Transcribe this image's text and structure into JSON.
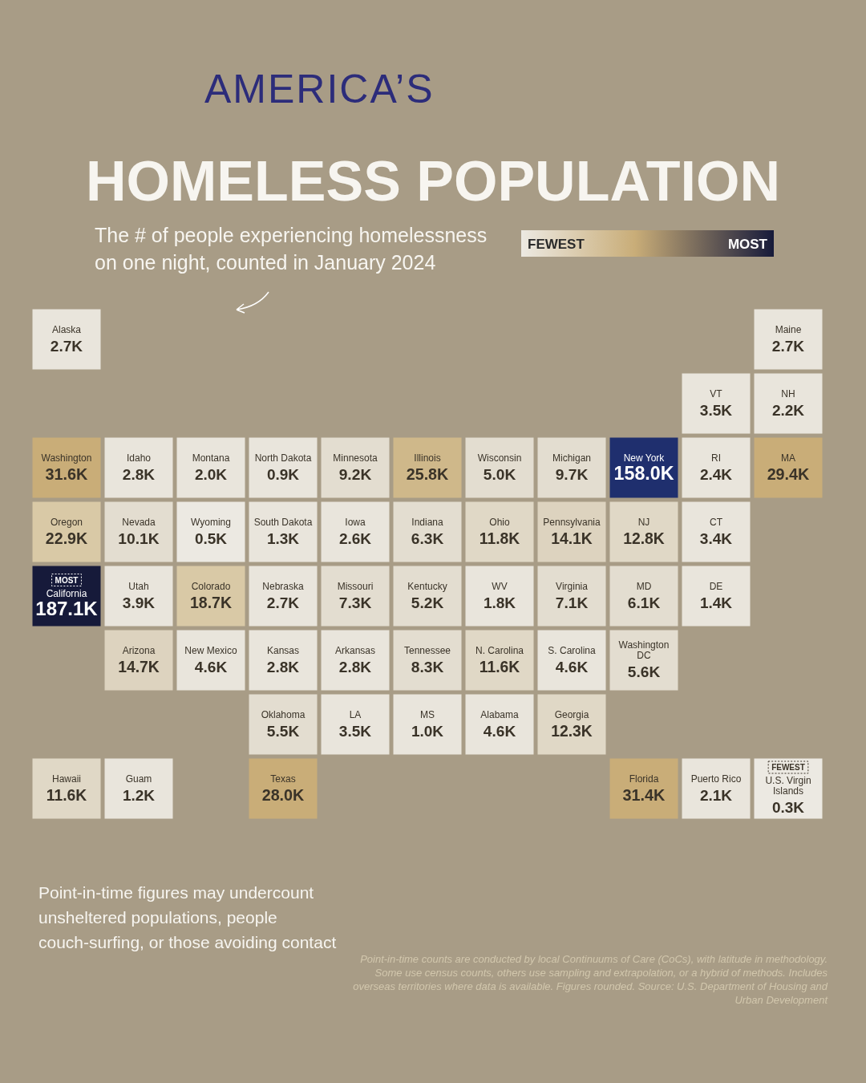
{
  "chart_data": {
    "type": "other",
    "title": "AMERICA’S HOMELESS POPULATION",
    "subtitle": "The # of people experiencing homelessness on one night, counted in January 2024",
    "categories": [
      "Alaska",
      "Maine",
      "VT",
      "NH",
      "Washington",
      "Idaho",
      "Montana",
      "North Dakota",
      "Minnesota",
      "Illinois",
      "Wisconsin",
      "Michigan",
      "New York",
      "RI",
      "MA",
      "Oregon",
      "Nevada",
      "Wyoming",
      "South Dakota",
      "Iowa",
      "Indiana",
      "Ohio",
      "Pennsylvania",
      "NJ",
      "CT",
      "California",
      "Utah",
      "Colorado",
      "Nebraska",
      "Missouri",
      "Kentucky",
      "WV",
      "Virginia",
      "MD",
      "DE",
      "Arizona",
      "New Mexico",
      "Kansas",
      "Arkansas",
      "Tennessee",
      "N. Carolina",
      "S. Carolina",
      "Washington DC",
      "Oklahoma",
      "LA",
      "MS",
      "Alabama",
      "Georgia",
      "Hawaii",
      "Guam",
      "Texas",
      "Florida",
      "Puerto Rico",
      "U.S. Virgin Islands"
    ],
    "values": [
      2.7,
      2.7,
      3.5,
      2.2,
      31.6,
      2.8,
      2.0,
      0.9,
      9.2,
      25.8,
      5.0,
      9.7,
      158.0,
      2.4,
      29.4,
      22.9,
      10.1,
      0.5,
      1.3,
      2.6,
      6.3,
      11.8,
      14.1,
      12.8,
      3.4,
      187.1,
      3.9,
      18.7,
      2.7,
      7.3,
      5.2,
      1.8,
      7.1,
      6.1,
      1.4,
      14.7,
      4.6,
      2.8,
      2.8,
      8.3,
      11.6,
      4.6,
      5.6,
      5.5,
      3.5,
      1.0,
      4.6,
      12.3,
      11.6,
      1.2,
      28.0,
      31.4,
      2.1,
      0.3
    ],
    "value_labels": [
      "2.7K",
      "2.7K",
      "3.5K",
      "2.2K",
      "31.6K",
      "2.8K",
      "2.0K",
      "0.9K",
      "9.2K",
      "25.8K",
      "5.0K",
      "9.7K",
      "158.0K",
      "2.4K",
      "29.4K",
      "22.9K",
      "10.1K",
      "0.5K",
      "1.3K",
      "2.6K",
      "6.3K",
      "11.8K",
      "14.1K",
      "12.8K",
      "3.4K",
      "187.1K",
      "3.9K",
      "18.7K",
      "2.7K",
      "7.3K",
      "5.2K",
      "1.8K",
      "7.1K",
      "6.1K",
      "1.4K",
      "14.7K",
      "4.6K",
      "2.8K",
      "2.8K",
      "8.3K",
      "11.6K",
      "4.6K",
      "5.6K",
      "5.5K",
      "3.5K",
      "1.0K",
      "4.6K",
      "12.3K",
      "11.6K",
      "1.2K",
      "28.0K",
      "31.4K",
      "2.1K",
      "0.3K"
    ],
    "colors": [
      "#e9e5dc",
      "#e9e5dc",
      "#e9e5dc",
      "#e9e5dc",
      "#c9ad78",
      "#e9e5dc",
      "#e9e5dc",
      "#e9e5dc",
      "#e3ddd0",
      "#cfb88a",
      "#e3ddd0",
      "#e3ddd0",
      "#1f2f6e",
      "#e9e5dc",
      "#c9ad78",
      "#d9c9a6",
      "#e3ddd0",
      "#ece9e2",
      "#e9e5dc",
      "#e9e5dc",
      "#e3ddd0",
      "#e0d8c6",
      "#ddd3bf",
      "#e0d8c6",
      "#e9e5dc",
      "#161a3a",
      "#e9e5dc",
      "#d9c9a6",
      "#e9e5dc",
      "#e3ddd0",
      "#e3ddd0",
      "#e9e5dc",
      "#e3ddd0",
      "#e3ddd0",
      "#e9e5dc",
      "#ddd3bf",
      "#e9e5dc",
      "#e9e5dc",
      "#e9e5dc",
      "#e3ddd0",
      "#e0d8c6",
      "#e9e5dc",
      "#e3ddd0",
      "#e3ddd0",
      "#e9e5dc",
      "#e9e5dc",
      "#e9e5dc",
      "#e0d8c6",
      "#e0d8c6",
      "#e9e5dc",
      "#c9ad78",
      "#c9ad78",
      "#e9e5dc",
      "#ece9e2"
    ],
    "annotations": [
      "FEWEST",
      "MOST",
      {
        "text": "MOST",
        "x": "California"
      },
      {
        "text": "FEWEST",
        "x": "U.S. Virgin Islands"
      },
      "Point-in-time figures may undercount unsheltered populations, people couch-surfing, or those avoiding contact",
      "Point-in-time counts are conducted by local Continuums of Care (CoCs), with latitude in methodology. Some use census counts, others use sampling and extrapolation, or a hybrid of methods. Includes overseas territories where data is available. Figures rounded. Source: U.S. Department of Housing and Urban Development"
    ]
  }
}
